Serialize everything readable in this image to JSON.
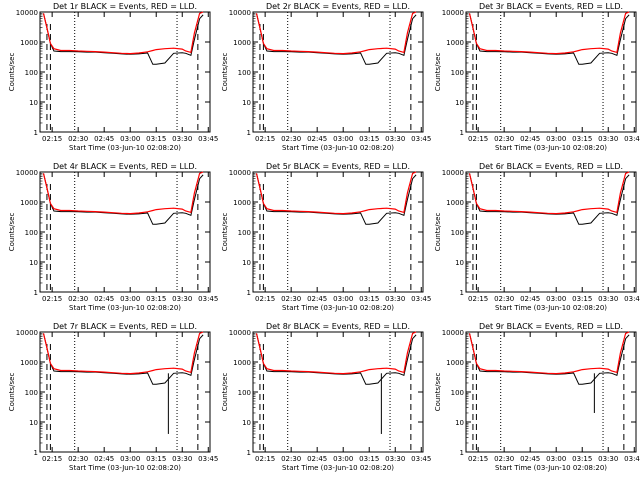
{
  "figure": {
    "xlabel": "Start Time (03-Jun-10 02:08:20)",
    "ylabel": "Counts/sec"
  },
  "shared_axes": {
    "x_ticks": [
      "02:15",
      "02:30",
      "02:45",
      "03:00",
      "03:15",
      "03:30",
      "03:45"
    ],
    "y_ticks": [
      "1",
      "10",
      "100",
      "1000",
      "10000"
    ],
    "y_scale": "log",
    "ylim": [
      1,
      10000
    ]
  },
  "colors": {
    "events": "#000000",
    "lld": "#ff0000",
    "axes": "#000000"
  },
  "chart_data": [
    {
      "type": "line",
      "title": "Det 1r BLACK = Events, RED = LLD.",
      "dip_min": null
    },
    {
      "type": "line",
      "title": "Det 2r BLACK = Events, RED = LLD.",
      "dip_min": null
    },
    {
      "type": "line",
      "title": "Det 3r BLACK = Events, RED = LLD.",
      "dip_min": null
    },
    {
      "type": "line",
      "title": "Det 4r BLACK = Events, RED = LLD.",
      "dip_min": null
    },
    {
      "type": "line",
      "title": "Det 5r BLACK = Events, RED = LLD.",
      "dip_min": null
    },
    {
      "type": "line",
      "title": "Det 6r BLACK = Events, RED = LLD.",
      "dip_min": null
    },
    {
      "type": "line",
      "title": "Det 7r BLACK = Events, RED = LLD.",
      "dip_min": 4
    },
    {
      "type": "line",
      "title": "Det 8r BLACK = Events, RED = LLD.",
      "dip_min": 4
    },
    {
      "type": "line",
      "title": "Det 9r BLACK = Events, RED = LLD.",
      "dip_min": 20
    }
  ],
  "series_template": {
    "x": [
      "02:10",
      "02:12",
      "02:14",
      "02:16",
      "02:20",
      "02:25",
      "02:30",
      "02:35",
      "02:40",
      "02:45",
      "02:50",
      "02:55",
      "03:00",
      "03:05",
      "03:10",
      "03:13",
      "03:15",
      "03:20",
      "03:25",
      "03:30",
      "03:32",
      "03:35",
      "03:37",
      "03:40",
      "03:42"
    ],
    "lld": [
      9000,
      3000,
      900,
      600,
      520,
      520,
      500,
      490,
      480,
      460,
      440,
      420,
      410,
      430,
      470,
      520,
      560,
      600,
      620,
      580,
      500,
      450,
      2000,
      9000,
      10000
    ],
    "events": [
      9000,
      3000,
      900,
      500,
      480,
      480,
      470,
      460,
      460,
      440,
      420,
      400,
      390,
      400,
      430,
      180,
      180,
      200,
      420,
      440,
      420,
      360,
      1200,
      6000,
      8000
    ],
    "ref_lines": [
      "02:28",
      "03:27"
    ],
    "dash_lines": [
      "02:12",
      "02:14",
      "03:39"
    ]
  }
}
